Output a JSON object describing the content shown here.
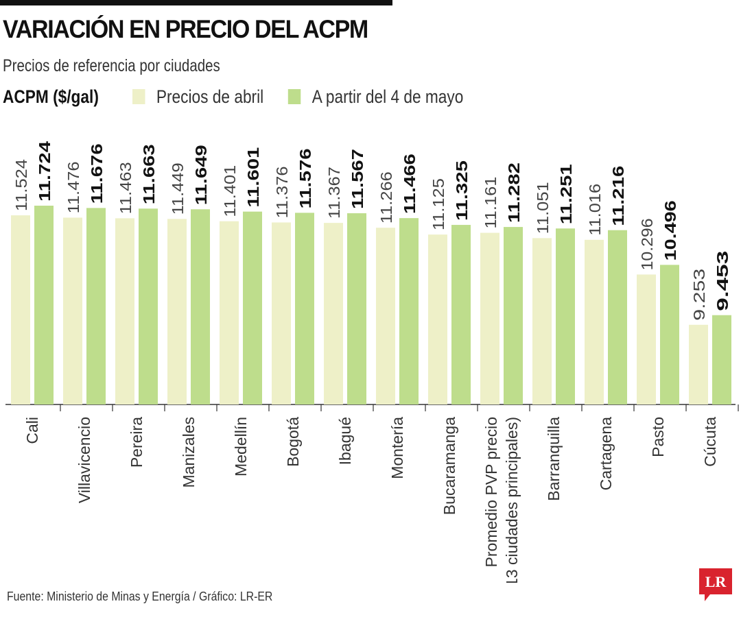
{
  "title": "VARIACIÓN EN PRECIO DEL ACPM",
  "subtitle": "Precios de referencia por ciudades",
  "legend": {
    "unit_label": "ACPM ($/gal)",
    "april_label": "Precios de abril",
    "may_label": "A partir del 4 de mayo"
  },
  "colors": {
    "april": "#eef0c8",
    "may": "#bedd8c",
    "axis": "#333333",
    "logo": "#d9232e"
  },
  "source": "Fuente: Ministerio de Minas y Energía / Gráfico: LR-ER",
  "logo_text": "LR",
  "chart_data": {
    "type": "bar",
    "categories": [
      "Cali",
      "Villavicencio",
      "Pereira",
      "Manizales",
      "Medellín",
      "Bogotá",
      "Ibagué",
      "Montería",
      "Bucaramanga",
      "Promedio PVP precio|(13 ciudades principales)",
      "Barranquilla",
      "Cartagena",
      "Pasto",
      "Cúcuta"
    ],
    "series": [
      {
        "name": "Precios de abril",
        "values": [
          11524,
          11476,
          11463,
          11449,
          11401,
          11376,
          11367,
          11266,
          11125,
          11161,
          11051,
          11016,
          10296,
          9253
        ],
        "labels": [
          "11.524",
          "11.476",
          "11.463",
          "11.449",
          "11.401",
          "11.376",
          "11.367",
          "11.266",
          "11.125",
          "11.161",
          "11.051",
          "11.016",
          "10.296",
          "9.253"
        ]
      },
      {
        "name": "A partir del 4 de mayo",
        "values": [
          11724,
          11676,
          11663,
          11649,
          11601,
          11576,
          11567,
          11466,
          11325,
          11282,
          11251,
          11216,
          10496,
          9453
        ],
        "labels": [
          "11.724",
          "11.676",
          "11.663",
          "11.649",
          "11.601",
          "11.576",
          "11.567",
          "11.466",
          "11.325",
          "11.282",
          "11.251",
          "11.216",
          "10.496",
          "9.453"
        ]
      }
    ],
    "ylim": [
      7600,
      11724
    ],
    "xlabel": "",
    "ylabel": "",
    "grid": false,
    "legend_position": "top-left"
  }
}
